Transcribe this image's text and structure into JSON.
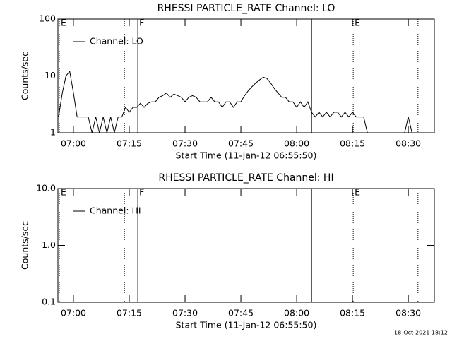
{
  "chart_data": [
    {
      "type": "line",
      "title": "RHESSI PARTICLE_RATE Channel: LO",
      "xlabel": "Start Time (11-Jan-12 06:55:50)",
      "ylabel": "Counts/sec",
      "log_y": true,
      "ylim": [
        1,
        100
      ],
      "yticks": [
        1,
        10,
        100
      ],
      "xlim": [
        415.83,
        517
      ],
      "xticks": [
        {
          "value": 420,
          "label": "07:00"
        },
        {
          "value": 435,
          "label": "07:15"
        },
        {
          "value": 450,
          "label": "07:30"
        },
        {
          "value": 465,
          "label": "07:45"
        },
        {
          "value": 480,
          "label": "08:00"
        },
        {
          "value": 495,
          "label": "08:15"
        },
        {
          "value": 510,
          "label": "08:30"
        }
      ],
      "events": [
        {
          "x": 416.2,
          "style": "dotted",
          "label": "E"
        },
        {
          "x": 433.7,
          "style": "dotted"
        },
        {
          "x": 437.3,
          "style": "solid",
          "label": "F"
        },
        {
          "x": 484.0,
          "style": "solid"
        },
        {
          "x": 495.2,
          "style": "dotted",
          "label": "E"
        },
        {
          "x": 512.6,
          "style": "dotted"
        }
      ],
      "x": [
        416,
        417,
        418,
        419,
        420,
        421,
        422,
        423,
        424,
        425,
        426,
        427,
        428,
        429,
        430,
        431,
        432,
        433,
        434,
        435,
        436,
        437,
        438,
        439,
        440,
        441,
        442,
        443,
        444,
        445,
        446,
        447,
        448,
        449,
        450,
        451,
        452,
        453,
        454,
        455,
        456,
        457,
        458,
        459,
        460,
        461,
        462,
        463,
        464,
        465,
        466,
        467,
        468,
        469,
        470,
        471,
        472,
        473,
        474,
        475,
        476,
        477,
        478,
        479,
        480,
        481,
        482,
        483,
        484,
        485,
        486,
        487,
        488,
        489,
        490,
        491,
        492,
        493,
        494,
        495,
        496,
        497,
        498,
        499,
        500,
        501,
        502,
        503,
        504,
        505,
        506,
        507,
        508,
        509,
        510,
        511,
        512,
        513,
        514,
        515,
        516
      ],
      "series": [
        {
          "name": "Channel: LO",
          "color": "#000000",
          "values": [
            1.9,
            5,
            10,
            12,
            5,
            1.9,
            1.9,
            1.9,
            1.9,
            1,
            1.9,
            1,
            1.9,
            1,
            1.9,
            1,
            1.9,
            1.9,
            2.8,
            2.3,
            2.8,
            2.8,
            3.3,
            2.8,
            3.3,
            3.5,
            3.5,
            4.2,
            4.5,
            5,
            4.2,
            4.8,
            4.5,
            4.2,
            3.5,
            4.2,
            4.5,
            4.2,
            3.5,
            3.5,
            3.5,
            4.2,
            3.5,
            3.5,
            2.8,
            3.5,
            3.5,
            2.8,
            3.5,
            3.5,
            4.5,
            5.5,
            6.5,
            7.5,
            8.5,
            9.5,
            9,
            7.5,
            6,
            5,
            4.2,
            4.2,
            3.5,
            3.5,
            2.8,
            3.5,
            2.8,
            3.5,
            2.3,
            1.9,
            2.3,
            1.9,
            2.3,
            1.9,
            2.3,
            2.3,
            1.9,
            2.3,
            1.9,
            2.3,
            1.9,
            1.9,
            1.9,
            1,
            1,
            1,
            1,
            1,
            1,
            1,
            1,
            1,
            1,
            1,
            1.9,
            1,
            1,
            1,
            1,
            1,
            1
          ]
        }
      ]
    },
    {
      "type": "line",
      "title": "RHESSI PARTICLE_RATE Channel: HI",
      "xlabel": "Start Time (11-Jan-12 06:55:50)",
      "ylabel": "Counts/sec",
      "log_y": true,
      "ylim": [
        0.1,
        10
      ],
      "yticks": [
        0.1,
        {
          "value": 1,
          "label": "1.0"
        },
        {
          "value": 10,
          "label": "10.0"
        }
      ],
      "xlim": [
        415.83,
        517
      ],
      "xticks": [
        {
          "value": 420,
          "label": "07:00"
        },
        {
          "value": 435,
          "label": "07:15"
        },
        {
          "value": 450,
          "label": "07:30"
        },
        {
          "value": 465,
          "label": "07:45"
        },
        {
          "value": 480,
          "label": "08:00"
        },
        {
          "value": 495,
          "label": "08:15"
        },
        {
          "value": 510,
          "label": "08:30"
        }
      ],
      "events": [
        {
          "x": 416.2,
          "style": "dotted",
          "label": "E"
        },
        {
          "x": 433.7,
          "style": "dotted"
        },
        {
          "x": 437.3,
          "style": "solid",
          "label": "F"
        },
        {
          "x": 484.0,
          "style": "solid"
        },
        {
          "x": 495.2,
          "style": "dotted",
          "label": "E"
        },
        {
          "x": 512.6,
          "style": "dotted"
        }
      ],
      "x": [],
      "series": [
        {
          "name": "Channel: HI",
          "color": "#000000",
          "values": []
        }
      ]
    }
  ],
  "footer": "18-Oct-2021 18:12"
}
